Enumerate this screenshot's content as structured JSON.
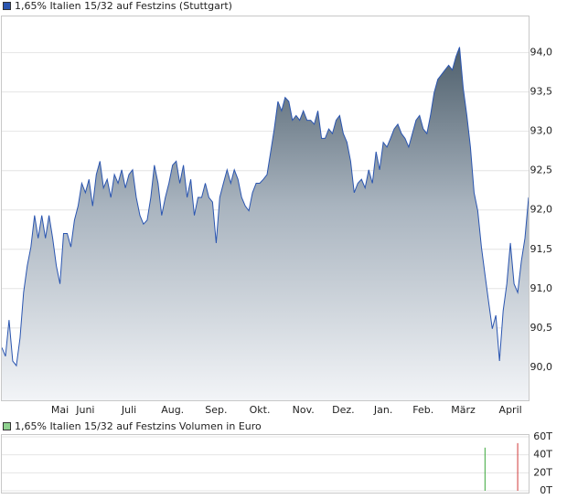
{
  "chart_data": [
    {
      "type": "area",
      "categories": [
        null,
        null,
        null,
        null,
        null,
        null,
        null,
        null,
        null,
        null,
        null,
        null,
        null,
        null,
        null,
        null,
        "Mai",
        null,
        null,
        null,
        null,
        null,
        null,
        "Juni",
        null,
        null,
        null,
        null,
        null,
        null,
        null,
        null,
        null,
        null,
        null,
        "Juli",
        null,
        null,
        null,
        null,
        null,
        null,
        null,
        null,
        null,
        null,
        null,
        "Aug.",
        null,
        null,
        null,
        null,
        null,
        null,
        null,
        null,
        null,
        null,
        null,
        "Sep.",
        null,
        null,
        null,
        null,
        null,
        null,
        null,
        null,
        null,
        null,
        null,
        "Okt.",
        null,
        null,
        null,
        null,
        null,
        null,
        null,
        null,
        null,
        null,
        null,
        "Nov.",
        null,
        null,
        null,
        null,
        null,
        null,
        null,
        null,
        null,
        null,
        "Dez.",
        null,
        null,
        null,
        null,
        null,
        null,
        null,
        null,
        null,
        null,
        "Jan.",
        null,
        null,
        null,
        null,
        null,
        null,
        null,
        null,
        null,
        null,
        "Feb.",
        null,
        null,
        null,
        null,
        null,
        null,
        null,
        null,
        null,
        null,
        "März",
        null,
        null,
        null,
        null,
        null,
        null,
        null,
        null,
        null,
        null,
        null,
        null,
        "April",
        null,
        null,
        null,
        null,
        null
      ],
      "series": [
        {
          "name": "1,65% Italien 15/32 auf Festzins (Stuttgart)",
          "color": "#2a55b0",
          "values": [
            90.25,
            90.14,
            90.6,
            90.08,
            90.02,
            90.37,
            90.95,
            91.29,
            91.53,
            91.93,
            91.64,
            91.93,
            91.64,
            91.93,
            91.64,
            91.29,
            91.06,
            91.7,
            91.7,
            91.53,
            91.87,
            92.05,
            92.34,
            92.22,
            92.39,
            92.05,
            92.45,
            92.62,
            92.28,
            92.39,
            92.16,
            92.45,
            92.34,
            92.51,
            92.28,
            92.45,
            92.51,
            92.16,
            91.93,
            91.82,
            91.87,
            92.16,
            92.57,
            92.34,
            91.93,
            92.16,
            92.34,
            92.57,
            92.62,
            92.34,
            92.57,
            92.16,
            92.39,
            91.93,
            92.16,
            92.16,
            92.34,
            92.16,
            92.1,
            91.58,
            92.16,
            92.34,
            92.51,
            92.34,
            92.51,
            92.39,
            92.16,
            92.05,
            91.99,
            92.22,
            92.34,
            92.34,
            92.39,
            92.45,
            92.74,
            93.03,
            93.38,
            93.26,
            93.43,
            93.38,
            93.14,
            93.2,
            93.14,
            93.26,
            93.14,
            93.14,
            93.09,
            93.26,
            92.91,
            92.91,
            93.03,
            92.97,
            93.14,
            93.2,
            92.97,
            92.86,
            92.62,
            92.22,
            92.34,
            92.39,
            92.28,
            92.51,
            92.34,
            92.74,
            92.51,
            92.86,
            92.8,
            92.91,
            93.03,
            93.09,
            92.97,
            92.91,
            92.8,
            92.97,
            93.14,
            93.2,
            93.03,
            92.97,
            93.2,
            93.49,
            93.66,
            93.72,
            93.78,
            93.84,
            93.78,
            93.95,
            94.07,
            93.55,
            93.2,
            92.8,
            92.22,
            91.99,
            91.53,
            91.18,
            90.83,
            90.49,
            90.66,
            90.08,
            90.72,
            91.06,
            91.58,
            91.06,
            90.95,
            91.35,
            91.64,
            92.16
          ]
        }
      ],
      "ylim": [
        89.58,
        94.46
      ],
      "yticks": [
        {
          "value": 90,
          "label": "90,0"
        },
        {
          "value": 90.5,
          "label": "90,5"
        },
        {
          "value": 91,
          "label": "91,0"
        },
        {
          "value": 91.5,
          "label": "91,5"
        },
        {
          "value": 92,
          "label": "92,0"
        },
        {
          "value": 92.5,
          "label": "92,5"
        },
        {
          "value": 93,
          "label": "93,0"
        },
        {
          "value": 93.5,
          "label": "93,5"
        },
        {
          "value": 94,
          "label": "94,0"
        }
      ],
      "grid": true
    },
    {
      "type": "bar",
      "series": [
        {
          "name": "1,65% Italien 15/32 auf Festzins Volumen in Euro",
          "color": "#8fd18f",
          "values": [
            null,
            null,
            null,
            null,
            null,
            null,
            null,
            null,
            null,
            null,
            null,
            null,
            null,
            null,
            null,
            null,
            null,
            null,
            null,
            null,
            null,
            null,
            null,
            null,
            null,
            null,
            null,
            null,
            null,
            null,
            null,
            null,
            null,
            null,
            null,
            null,
            null,
            null,
            null,
            null,
            null,
            null,
            null,
            null,
            null,
            null,
            null,
            null,
            null,
            null,
            null,
            null,
            null,
            null,
            null,
            null,
            null,
            null,
            null,
            null,
            null,
            null,
            null,
            null,
            null,
            null,
            null,
            null,
            null,
            null,
            null,
            null,
            null,
            null,
            null,
            null,
            null,
            null,
            null,
            null,
            null,
            null,
            null,
            null,
            null,
            null,
            null,
            null,
            null,
            null,
            null,
            null,
            null,
            null,
            null,
            null,
            null,
            null,
            null,
            null,
            null,
            null,
            null,
            null,
            null,
            null,
            null,
            null,
            null,
            null,
            null,
            null,
            null,
            null,
            null,
            null,
            null,
            null,
            null,
            null,
            null,
            null,
            null,
            null,
            null,
            null,
            null,
            null,
            null,
            null,
            null,
            null,
            null,
            48000,
            null,
            null,
            null,
            null,
            null,
            null,
            null,
            null,
            53000,
            null,
            null,
            null
          ],
          "colors": [
            null,
            null,
            null,
            null,
            null,
            null,
            null,
            null,
            null,
            null,
            null,
            null,
            null,
            null,
            null,
            null,
            null,
            null,
            null,
            null,
            null,
            null,
            null,
            null,
            null,
            null,
            null,
            null,
            null,
            null,
            null,
            null,
            null,
            null,
            null,
            null,
            null,
            null,
            null,
            null,
            null,
            null,
            null,
            null,
            null,
            null,
            null,
            null,
            null,
            null,
            null,
            null,
            null,
            null,
            null,
            null,
            null,
            null,
            null,
            null,
            null,
            null,
            null,
            null,
            null,
            null,
            null,
            null,
            null,
            null,
            null,
            null,
            null,
            null,
            null,
            null,
            null,
            null,
            null,
            null,
            null,
            null,
            null,
            null,
            null,
            null,
            null,
            null,
            null,
            null,
            null,
            null,
            null,
            null,
            null,
            null,
            null,
            null,
            null,
            null,
            null,
            null,
            null,
            null,
            null,
            null,
            null,
            null,
            null,
            null,
            null,
            null,
            null,
            null,
            null,
            null,
            null,
            null,
            null,
            null,
            null,
            null,
            null,
            null,
            null,
            null,
            null,
            null,
            null,
            null,
            null,
            null,
            null,
            "#3aa83a",
            null,
            null,
            null,
            null,
            null,
            null,
            null,
            null,
            "#d03a3a",
            null,
            null,
            null
          ]
        }
      ],
      "ylim": [
        0,
        60000
      ],
      "yticks": [
        {
          "value": 0,
          "label": "0T"
        },
        {
          "value": 20000,
          "label": "20T"
        },
        {
          "value": 40000,
          "label": "40T"
        },
        {
          "value": 60000,
          "label": "60T"
        }
      ],
      "grid": true
    }
  ]
}
